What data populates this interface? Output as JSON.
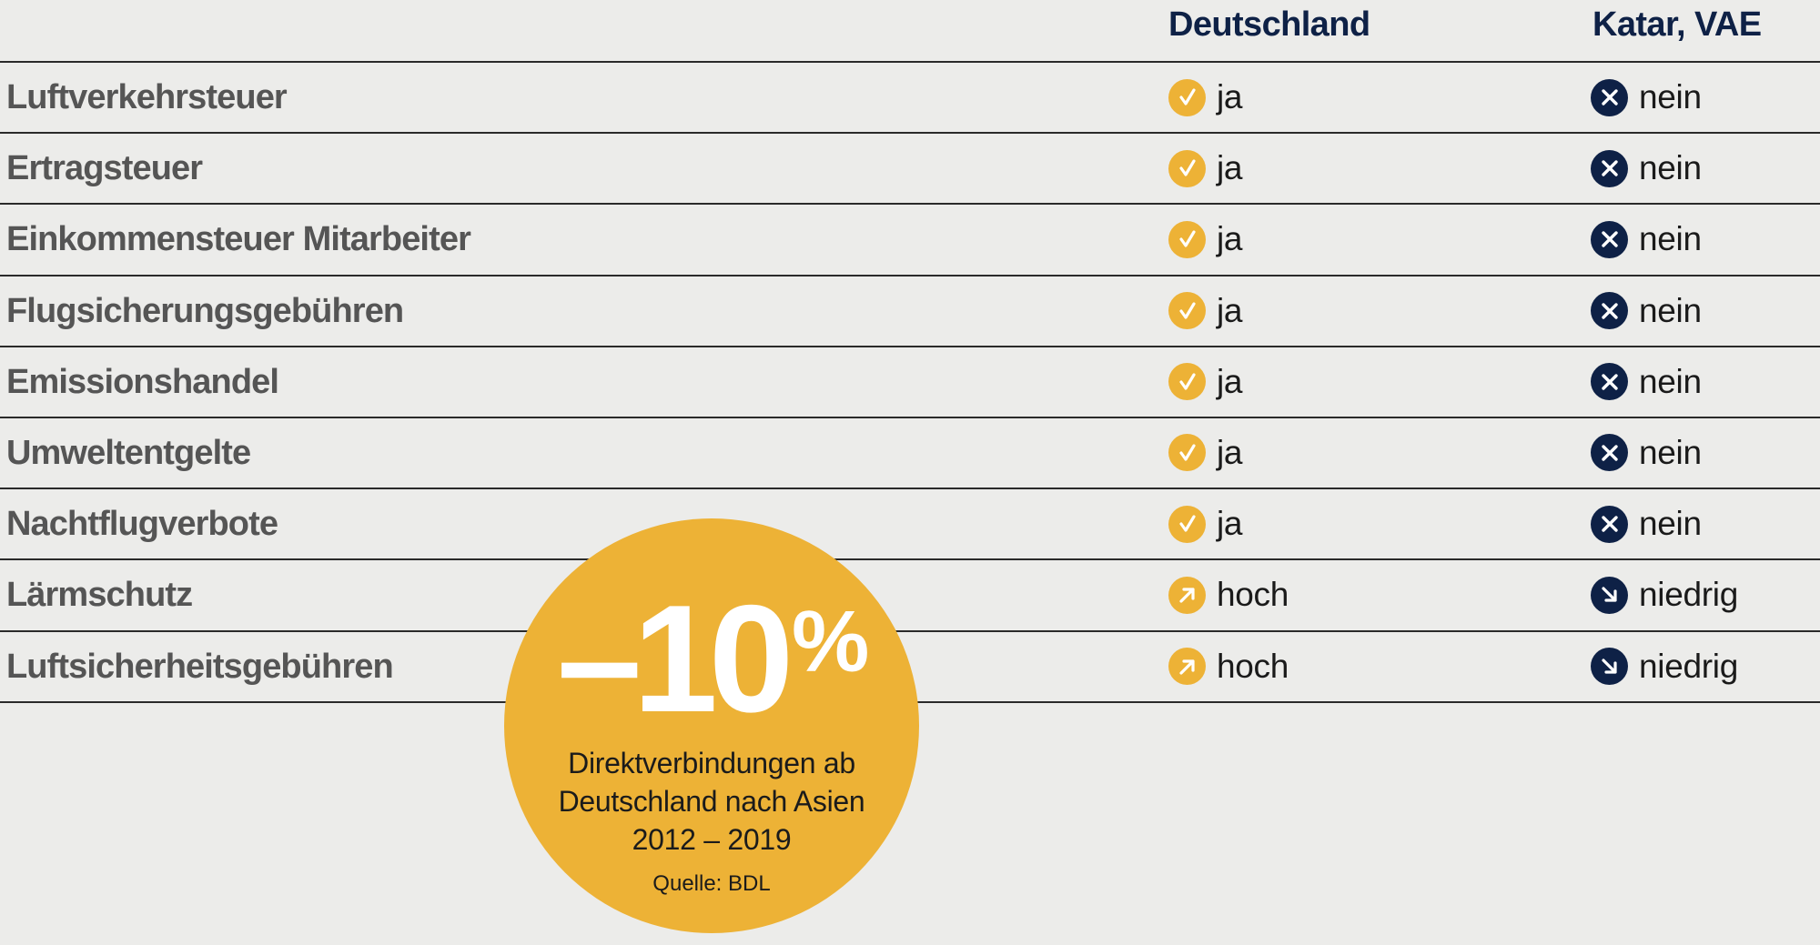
{
  "columns": {
    "germany": "Deutschland",
    "qatar_uae": "Katar, VAE"
  },
  "rows": [
    {
      "label": "Luftverkehrsteuer",
      "germany": {
        "icon": "check-icon",
        "value": "ja"
      },
      "qatar_uae": {
        "icon": "cross-icon",
        "value": "nein"
      }
    },
    {
      "label": "Ertragsteuer",
      "germany": {
        "icon": "check-icon",
        "value": "ja"
      },
      "qatar_uae": {
        "icon": "cross-icon",
        "value": "nein"
      }
    },
    {
      "label": "Einkommensteuer Mitarbeiter",
      "germany": {
        "icon": "check-icon",
        "value": "ja"
      },
      "qatar_uae": {
        "icon": "cross-icon",
        "value": "nein"
      }
    },
    {
      "label": "Flugsicherungsgebühren",
      "germany": {
        "icon": "check-icon",
        "value": "ja"
      },
      "qatar_uae": {
        "icon": "cross-icon",
        "value": "nein"
      }
    },
    {
      "label": "Emissionshandel",
      "germany": {
        "icon": "check-icon",
        "value": "ja"
      },
      "qatar_uae": {
        "icon": "cross-icon",
        "value": "nein"
      }
    },
    {
      "label": "Umweltentgelte",
      "germany": {
        "icon": "check-icon",
        "value": "ja"
      },
      "qatar_uae": {
        "icon": "cross-icon",
        "value": "nein"
      }
    },
    {
      "label": "Nachtflugverbote",
      "germany": {
        "icon": "check-icon",
        "value": "ja"
      },
      "qatar_uae": {
        "icon": "cross-icon",
        "value": "nein"
      }
    },
    {
      "label": "Lärmschutz",
      "germany": {
        "icon": "arrow-up-right-icon",
        "value": "hoch"
      },
      "qatar_uae": {
        "icon": "arrow-down-right-icon",
        "value": "niedrig"
      }
    },
    {
      "label": "Luftsicherheitsgebühren",
      "germany": {
        "icon": "arrow-up-right-icon",
        "value": "hoch"
      },
      "qatar_uae": {
        "icon": "arrow-down-right-icon",
        "value": "niedrig"
      }
    }
  ],
  "badge": {
    "value": "–10",
    "unit": "%",
    "description_lines": [
      "Direktverbindungen ab",
      "Deutschland nach Asien",
      "2012 – 2019"
    ],
    "source": "Quelle: BDL"
  },
  "colors": {
    "yellow": "#edb236",
    "navy": "#0e2146",
    "label_gray": "#555555",
    "background": "#ececea"
  }
}
